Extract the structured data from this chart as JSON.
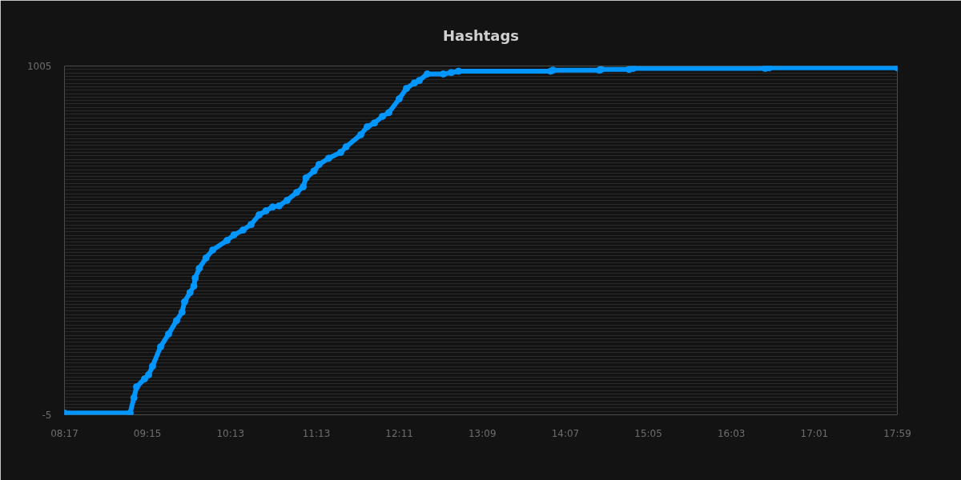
{
  "chart_data": {
    "type": "line",
    "title": "Hashtags",
    "x": [
      8.28333,
      9.048,
      9.092,
      9.123,
      9.216,
      9.263,
      9.309,
      9.403,
      9.496,
      9.589,
      9.652,
      9.682,
      9.745,
      9.791,
      9.806,
      9.853,
      9.931,
      10.009,
      10.177,
      10.258,
      10.363,
      10.456,
      10.55,
      10.631,
      10.708,
      10.783,
      10.876,
      10.988,
      11.063,
      11.097,
      11.19,
      11.249,
      11.361,
      11.501,
      11.564,
      11.734,
      11.809,
      11.893,
      11.986,
      12.061,
      12.182,
      12.266,
      12.359,
      12.415,
      12.508,
      12.695,
      12.788,
      12.872,
      13.945,
      13.973,
      14.513,
      14.532,
      14.859,
      14.905,
      16.444,
      16.491,
      17.98333
    ],
    "values": [
      0,
      0,
      44,
      76,
      99,
      111,
      136,
      192,
      229,
      268,
      292,
      322,
      349,
      368,
      391,
      419,
      449,
      472,
      500,
      516,
      530,
      546,
      574,
      586,
      597,
      600,
      616,
      639,
      655,
      681,
      701,
      720,
      738,
      755,
      771,
      806,
      829,
      840,
      859,
      870,
      910,
      940,
      956,
      963,
      982,
      982,
      986,
      990,
      990,
      993,
      993,
      995,
      995,
      998,
      998,
      1000,
      1000
    ],
    "color": "#0096ff",
    "marker": "circle",
    "line_style": "solid",
    "grid": "y",
    "xlim": [
      8.28333,
      17.98333
    ],
    "xticks": [
      {
        "value": 8.28333,
        "label": "08:17"
      },
      {
        "value": 9.25,
        "label": "09:15"
      },
      {
        "value": 10.21667,
        "label": "10:13"
      },
      {
        "value": 11.21667,
        "label": "11:13"
      },
      {
        "value": 12.18333,
        "label": "12:11"
      },
      {
        "value": 13.15,
        "label": "13:09"
      },
      {
        "value": 14.11667,
        "label": "14:07"
      },
      {
        "value": 15.08333,
        "label": "15:05"
      },
      {
        "value": 16.05,
        "label": "16:03"
      },
      {
        "value": 17.01667,
        "label": "17:01"
      },
      {
        "value": 17.98333,
        "label": "17:59"
      }
    ],
    "ylim": [
      -5,
      1005
    ],
    "yticks": [
      -5,
      {
        "value": 5,
        "label": null
      },
      {
        "value": 15,
        "label": null
      },
      {
        "value": 25,
        "label": null
      },
      {
        "value": 35,
        "label": null
      },
      {
        "value": 45,
        "label": null
      },
      {
        "value": 55,
        "label": null
      },
      {
        "value": 65,
        "label": null
      },
      {
        "value": 75,
        "label": null
      },
      {
        "value": 85,
        "label": null
      },
      {
        "value": 95,
        "label": null
      },
      {
        "value": 105,
        "label": null
      },
      {
        "value": 115,
        "label": null
      },
      {
        "value": 125,
        "label": null
      },
      {
        "value": 135,
        "label": null
      },
      {
        "value": 145,
        "label": null
      },
      {
        "value": 155,
        "label": null
      },
      {
        "value": 165,
        "label": null
      },
      {
        "value": 175,
        "label": null
      },
      {
        "value": 185,
        "label": null
      },
      {
        "value": 195,
        "label": null
      },
      {
        "value": 205,
        "label": null
      },
      {
        "value": 215,
        "label": null
      },
      {
        "value": 225,
        "label": null
      },
      {
        "value": 235,
        "label": null
      },
      {
        "value": 245,
        "label": null
      },
      {
        "value": 255,
        "label": null
      },
      {
        "value": 265,
        "label": null
      },
      {
        "value": 275,
        "label": null
      },
      {
        "value": 285,
        "label": null
      },
      {
        "value": 295,
        "label": null
      },
      {
        "value": 305,
        "label": null
      },
      {
        "value": 315,
        "label": null
      },
      {
        "value": 325,
        "label": null
      },
      {
        "value": 335,
        "label": null
      },
      {
        "value": 345,
        "label": null
      },
      {
        "value": 355,
        "label": null
      },
      {
        "value": 365,
        "label": null
      },
      {
        "value": 375,
        "label": null
      },
      {
        "value": 385,
        "label": null
      },
      {
        "value": 395,
        "label": null
      },
      {
        "value": 405,
        "label": null
      },
      {
        "value": 415,
        "label": null
      },
      {
        "value": 425,
        "label": null
      },
      {
        "value": 435,
        "label": null
      },
      {
        "value": 445,
        "label": null
      },
      {
        "value": 455,
        "label": null
      },
      {
        "value": 465,
        "label": null
      },
      {
        "value": 475,
        "label": null
      },
      {
        "value": 485,
        "label": null
      },
      {
        "value": 495,
        "label": null
      },
      {
        "value": 505,
        "label": null
      },
      {
        "value": 515,
        "label": null
      },
      {
        "value": 525,
        "label": null
      },
      {
        "value": 535,
        "label": null
      },
      {
        "value": 545,
        "label": null
      },
      {
        "value": 555,
        "label": null
      },
      {
        "value": 565,
        "label": null
      },
      {
        "value": 575,
        "label": null
      },
      {
        "value": 585,
        "label": null
      },
      {
        "value": 595,
        "label": null
      },
      {
        "value": 605,
        "label": null
      },
      {
        "value": 615,
        "label": null
      },
      {
        "value": 625,
        "label": null
      },
      {
        "value": 635,
        "label": null
      },
      {
        "value": 645,
        "label": null
      },
      {
        "value": 655,
        "label": null
      },
      {
        "value": 665,
        "label": null
      },
      {
        "value": 675,
        "label": null
      },
      {
        "value": 685,
        "label": null
      },
      {
        "value": 695,
        "label": null
      },
      {
        "value": 705,
        "label": null
      },
      {
        "value": 715,
        "label": null
      },
      {
        "value": 725,
        "label": null
      },
      {
        "value": 735,
        "label": null
      },
      {
        "value": 745,
        "label": null
      },
      {
        "value": 755,
        "label": null
      },
      {
        "value": 765,
        "label": null
      },
      {
        "value": 775,
        "label": null
      },
      {
        "value": 785,
        "label": null
      },
      {
        "value": 795,
        "label": null
      },
      {
        "value": 805,
        "label": null
      },
      {
        "value": 815,
        "label": null
      },
      {
        "value": 825,
        "label": null
      },
      {
        "value": 835,
        "label": null
      },
      {
        "value": 845,
        "label": null
      },
      {
        "value": 855,
        "label": null
      },
      {
        "value": 865,
        "label": null
      },
      {
        "value": 875,
        "label": null
      },
      {
        "value": 885,
        "label": null
      },
      {
        "value": 895,
        "label": null
      },
      {
        "value": 905,
        "label": null
      },
      {
        "value": 915,
        "label": null
      },
      {
        "value": 925,
        "label": null
      },
      {
        "value": 935,
        "label": null
      },
      {
        "value": 945,
        "label": null
      },
      {
        "value": 955,
        "label": null
      },
      {
        "value": 965,
        "label": null
      },
      {
        "value": 975,
        "label": null
      },
      {
        "value": 985,
        "label": null
      },
      {
        "value": 995,
        "label": null
      },
      1005
    ]
  }
}
